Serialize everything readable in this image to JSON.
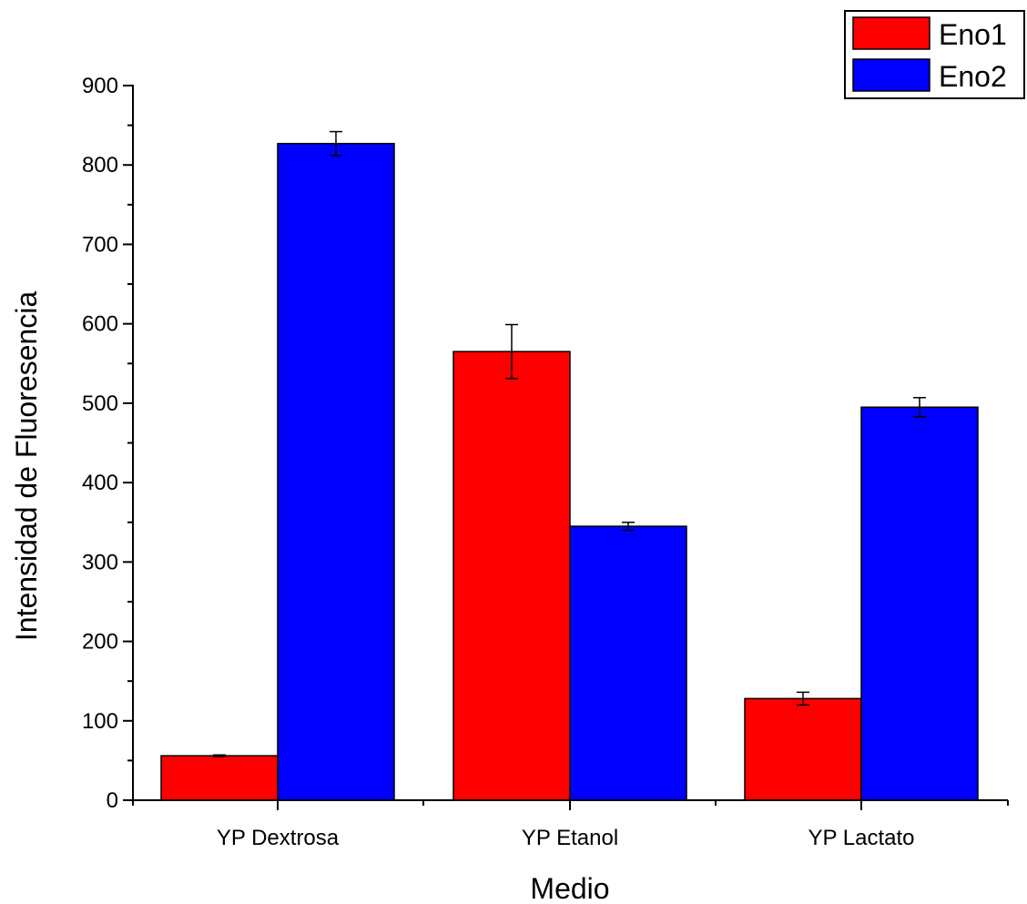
{
  "chart_data": {
    "type": "bar",
    "title": "",
    "xlabel": "Medio",
    "ylabel": "Intensidad de Fluoresencia",
    "categories": [
      "YP Dextrosa",
      "YP Etanol",
      "YP Lactato"
    ],
    "series": [
      {
        "name": "Eno1",
        "color": "#ff0000",
        "values": [
          56,
          565,
          128
        ],
        "errors": [
          1,
          34,
          8
        ]
      },
      {
        "name": "Eno2",
        "color": "#0000ff",
        "values": [
          827,
          345,
          495
        ],
        "errors": [
          15,
          5,
          12
        ]
      }
    ],
    "ylim": [
      0,
      900
    ],
    "yticks": [
      0,
      100,
      200,
      300,
      400,
      500,
      600,
      700,
      800,
      900
    ],
    "grid": false,
    "legend_position": "top-right"
  }
}
